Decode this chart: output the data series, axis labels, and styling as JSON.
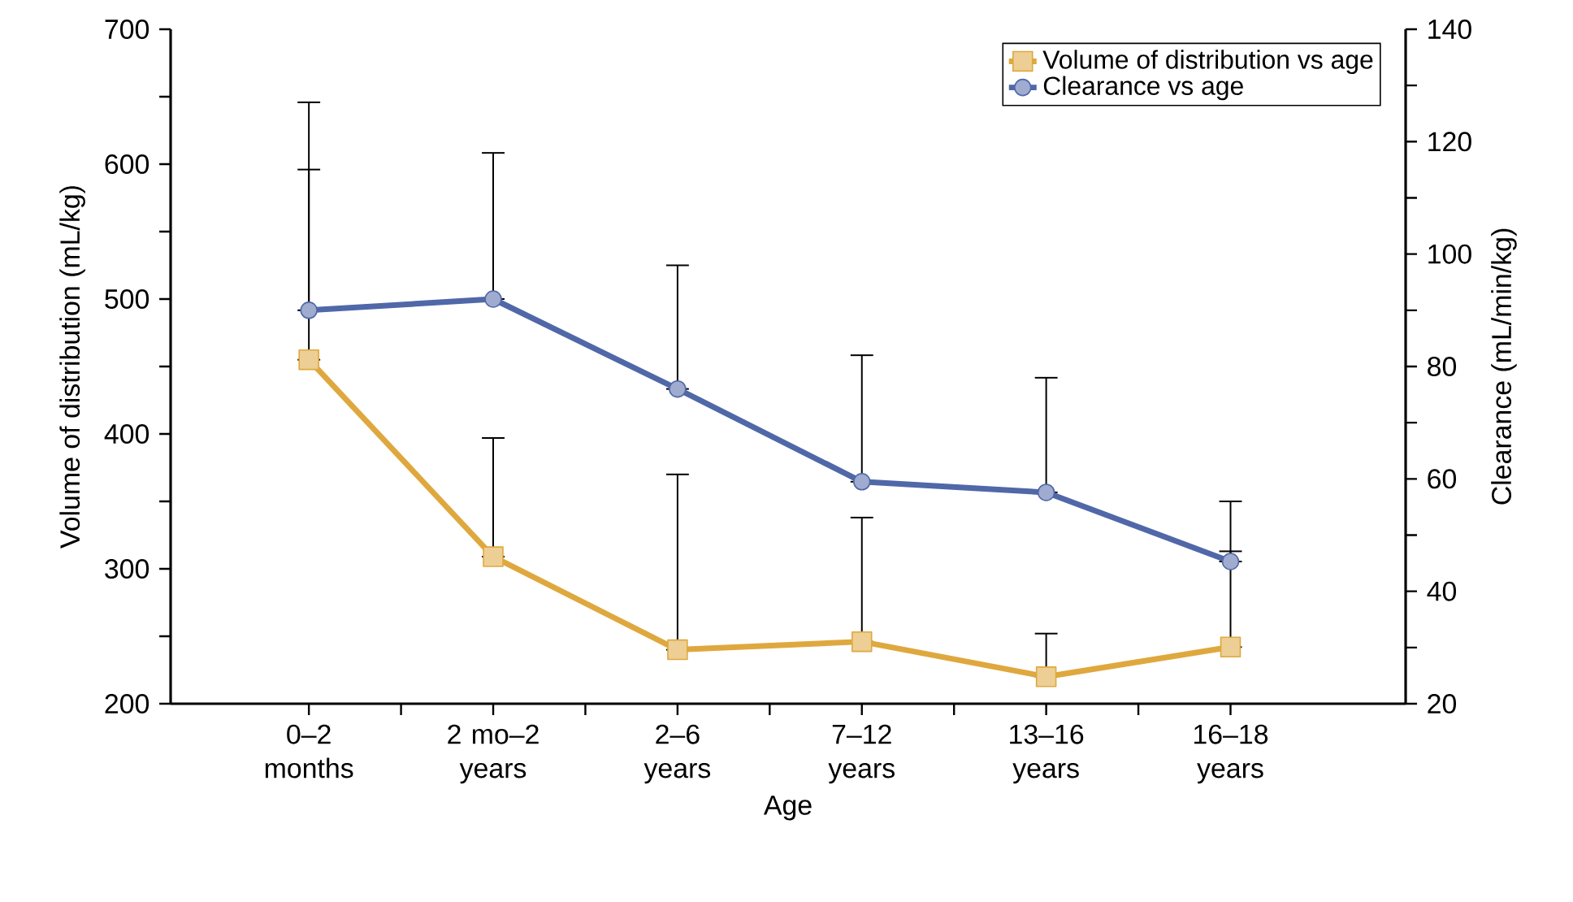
{
  "chart_data": {
    "type": "line",
    "categories": [
      "0–2 months",
      "2 mo–2 years",
      "2–6 years",
      "7–12 years",
      "13–16 years",
      "16–18 years"
    ],
    "xlabel": "Age",
    "ylabel": "Volume of distribution (mL/kg)",
    "y2label": "Clearance (mL/min/kg)",
    "ylim": [
      200,
      700
    ],
    "yticks": [
      200,
      {
        "value": 250,
        "label": null
      },
      300,
      {
        "value": 350,
        "label": null
      },
      400,
      {
        "value": 450,
        "label": null
      },
      500,
      {
        "value": 550,
        "label": null
      },
      600,
      {
        "value": 650,
        "label": null
      },
      700
    ],
    "y2lim": [
      20,
      140
    ],
    "y2ticks": [
      20,
      {
        "value": 30,
        "label": null
      },
      40,
      {
        "value": 50,
        "label": null
      },
      60,
      {
        "value": 70,
        "label": null
      },
      80,
      {
        "value": 90,
        "label": null
      },
      100,
      {
        "value": 110,
        "label": null
      },
      120,
      {
        "value": 130,
        "label": null
      },
      140
    ],
    "legend": "top right",
    "series": [
      {
        "name": "Volume of distribution vs age",
        "color": "#dfa83e",
        "marker": "square",
        "values": [
          455,
          309,
          240,
          246,
          220,
          242
        ],
        "errors": [
          [
            455,
            596
          ],
          [
            309,
            397
          ],
          [
            240,
            370
          ],
          [
            246,
            338
          ],
          [
            220,
            252
          ],
          [
            242,
            313
          ]
        ]
      },
      {
        "name": "Clearance vs age",
        "color": "#5068a8",
        "marker": "circle",
        "axis": "y2",
        "values": [
          90,
          92,
          76,
          59.5,
          57.6,
          45.3
        ],
        "errors": [
          [
            90,
            127
          ],
          [
            92,
            118
          ],
          [
            76,
            98
          ],
          [
            59.5,
            82
          ],
          [
            57.6,
            78
          ],
          [
            45.3,
            56
          ]
        ]
      }
    ]
  }
}
